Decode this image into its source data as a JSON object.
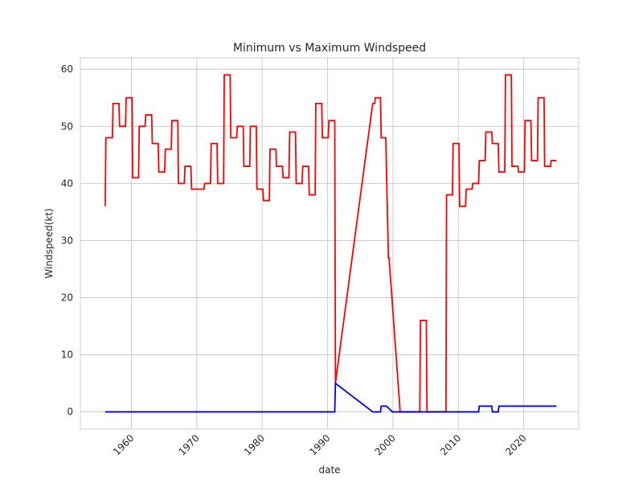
{
  "chart_data": {
    "type": "line",
    "title": "Minimum vs Maximum Windspeed",
    "xlabel": "date",
    "ylabel": "Windspeed(kt)",
    "xlim": [
      1952.2,
      2028.4
    ],
    "ylim": [
      -3,
      62
    ],
    "x_ticks": [
      1960,
      1970,
      1980,
      1990,
      2000,
      2010,
      2020
    ],
    "y_ticks": [
      0,
      10,
      20,
      30,
      40,
      50,
      60
    ],
    "grid": true,
    "legend": "none",
    "style": "whitegrid",
    "series": [
      {
        "color": "#ff0000",
        "points": [
          [
            1956.0,
            36
          ],
          [
            1956.1,
            48
          ],
          [
            1957.1,
            48
          ],
          [
            1957.2,
            54
          ],
          [
            1958.1,
            54
          ],
          [
            1958.2,
            50
          ],
          [
            1959.1,
            50
          ],
          [
            1959.2,
            55
          ],
          [
            1960.1,
            55
          ],
          [
            1960.2,
            41
          ],
          [
            1961.1,
            41
          ],
          [
            1961.2,
            50
          ],
          [
            1962.1,
            50
          ],
          [
            1962.2,
            52
          ],
          [
            1963.1,
            52
          ],
          [
            1963.2,
            47
          ],
          [
            1964.1,
            47
          ],
          [
            1964.2,
            42
          ],
          [
            1965.1,
            42
          ],
          [
            1965.2,
            46
          ],
          [
            1966.1,
            46
          ],
          [
            1966.2,
            51
          ],
          [
            1967.1,
            51
          ],
          [
            1967.2,
            40
          ],
          [
            1968.1,
            40
          ],
          [
            1968.2,
            43
          ],
          [
            1969.1,
            43
          ],
          [
            1969.2,
            39
          ],
          [
            1971.1,
            39
          ],
          [
            1971.2,
            40
          ],
          [
            1972.1,
            40
          ],
          [
            1972.2,
            47
          ],
          [
            1973.1,
            47
          ],
          [
            1973.2,
            40
          ],
          [
            1974.1,
            40
          ],
          [
            1974.2,
            59
          ],
          [
            1975.1,
            59
          ],
          [
            1975.2,
            48
          ],
          [
            1976.1,
            48
          ],
          [
            1976.2,
            50
          ],
          [
            1977.1,
            50
          ],
          [
            1977.2,
            43
          ],
          [
            1978.1,
            43
          ],
          [
            1978.2,
            50
          ],
          [
            1979.1,
            50
          ],
          [
            1979.2,
            39
          ],
          [
            1980.1,
            39
          ],
          [
            1980.2,
            37
          ],
          [
            1981.1,
            37
          ],
          [
            1981.2,
            46
          ],
          [
            1982.1,
            46
          ],
          [
            1982.2,
            43
          ],
          [
            1983.1,
            43
          ],
          [
            1983.2,
            41
          ],
          [
            1984.1,
            41
          ],
          [
            1984.2,
            49
          ],
          [
            1985.1,
            49
          ],
          [
            1985.2,
            40
          ],
          [
            1986.1,
            40
          ],
          [
            1986.2,
            43
          ],
          [
            1987.1,
            43
          ],
          [
            1987.2,
            38
          ],
          [
            1988.1,
            38
          ],
          [
            1988.2,
            54
          ],
          [
            1989.1,
            54
          ],
          [
            1989.2,
            48
          ],
          [
            1990.1,
            48
          ],
          [
            1990.2,
            51
          ],
          [
            1991.1,
            51
          ],
          [
            1991.2,
            5
          ],
          [
            1996.9,
            54
          ],
          [
            1997.2,
            54
          ],
          [
            1997.3,
            55
          ],
          [
            1998.1,
            55
          ],
          [
            1998.2,
            48
          ],
          [
            1998.9,
            48
          ],
          [
            1999.3,
            27
          ],
          [
            1999.4,
            27
          ],
          [
            2001.1,
            0
          ],
          [
            2004.1,
            0
          ],
          [
            2004.2,
            16
          ],
          [
            2005.1,
            16
          ],
          [
            2005.2,
            0
          ],
          [
            2008.1,
            0
          ],
          [
            2008.2,
            38
          ],
          [
            2009.1,
            38
          ],
          [
            2009.2,
            47
          ],
          [
            2010.1,
            47
          ],
          [
            2010.2,
            36
          ],
          [
            2011.1,
            36
          ],
          [
            2011.2,
            39
          ],
          [
            2012.1,
            39
          ],
          [
            2012.2,
            40
          ],
          [
            2013.1,
            40
          ],
          [
            2013.2,
            44
          ],
          [
            2014.1,
            44
          ],
          [
            2014.2,
            49
          ],
          [
            2015.1,
            49
          ],
          [
            2015.2,
            47
          ],
          [
            2016.1,
            47
          ],
          [
            2016.2,
            42
          ],
          [
            2017.1,
            42
          ],
          [
            2017.2,
            59
          ],
          [
            2018.1,
            59
          ],
          [
            2018.2,
            43
          ],
          [
            2019.1,
            43
          ],
          [
            2019.2,
            42
          ],
          [
            2020.1,
            42
          ],
          [
            2020.2,
            51
          ],
          [
            2021.1,
            51
          ],
          [
            2021.2,
            44
          ],
          [
            2022.1,
            44
          ],
          [
            2022.2,
            55
          ],
          [
            2023.1,
            55
          ],
          [
            2023.2,
            43
          ],
          [
            2024.1,
            43
          ],
          [
            2024.2,
            44
          ],
          [
            2025.0,
            44
          ]
        ]
      },
      {
        "color": "#0000ff",
        "points": [
          [
            1956.0,
            0
          ],
          [
            1991.1,
            0
          ],
          [
            1991.2,
            5
          ],
          [
            1996.9,
            0
          ],
          [
            1998.1,
            0
          ],
          [
            1998.2,
            1
          ],
          [
            1999.0,
            1
          ],
          [
            1999.9,
            0
          ],
          [
            2013.1,
            0
          ],
          [
            2013.2,
            1
          ],
          [
            2015.1,
            1
          ],
          [
            2015.2,
            0
          ],
          [
            2016.1,
            0
          ],
          [
            2016.2,
            1
          ],
          [
            2025.0,
            1
          ]
        ]
      }
    ]
  }
}
